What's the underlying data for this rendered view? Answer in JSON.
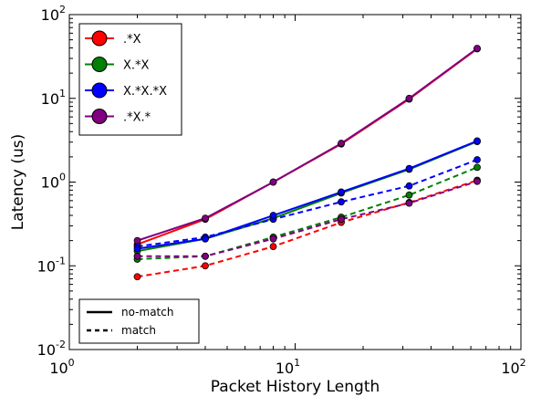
{
  "chart_data": {
    "type": "line",
    "title": "",
    "xlabel": "Packet History Length",
    "ylabel": "Latency (us)",
    "xscale": "log",
    "yscale": "log",
    "xlim": [
      1,
      100
    ],
    "ylim": [
      0.01,
      100
    ],
    "x_ticks": [
      {
        "value": 1,
        "base": "10",
        "exp": "0"
      },
      {
        "value": 10,
        "base": "10",
        "exp": "1"
      },
      {
        "value": 100,
        "base": "10",
        "exp": "2"
      }
    ],
    "y_ticks": [
      {
        "value": 0.01,
        "base": "10",
        "exp": "-2"
      },
      {
        "value": 0.1,
        "base": "10",
        "exp": "-1"
      },
      {
        "value": 1,
        "base": "10",
        "exp": "0"
      },
      {
        "value": 10,
        "base": "10",
        "exp": "1"
      },
      {
        "value": 100,
        "base": "10",
        "exp": "2"
      }
    ],
    "grid": false,
    "legend_placement": "top-left",
    "x": [
      2,
      4,
      8,
      16,
      32,
      64
    ],
    "series": [
      {
        "name": ".*X",
        "color": "#ff0000",
        "no_match": [
          0.18,
          0.36,
          1.0,
          2.85,
          9.8,
          39
        ],
        "match": [
          0.074,
          0.1,
          0.17,
          0.33,
          0.57,
          1.05
        ]
      },
      {
        "name": "X.*X",
        "color": "#008000",
        "no_match": [
          0.15,
          0.21,
          0.37,
          0.74,
          1.42,
          3.05
        ],
        "match": [
          0.12,
          0.13,
          0.22,
          0.38,
          0.7,
          1.5
        ]
      },
      {
        "name": "X.*X.*X",
        "color": "#0000ff",
        "no_match": [
          0.16,
          0.21,
          0.4,
          0.76,
          1.45,
          3.1
        ],
        "match": [
          0.17,
          0.22,
          0.36,
          0.58,
          0.9,
          1.85
        ]
      },
      {
        "name": ".*X.*",
        "color": "#800080",
        "no_match": [
          0.2,
          0.37,
          1.0,
          2.9,
          10.0,
          39.5
        ],
        "match": [
          0.13,
          0.13,
          0.21,
          0.36,
          0.56,
          1.02
        ]
      }
    ],
    "line_styles": [
      {
        "label": "no-match",
        "dash": "solid"
      },
      {
        "label": "match",
        "dash": "dashed"
      }
    ]
  }
}
